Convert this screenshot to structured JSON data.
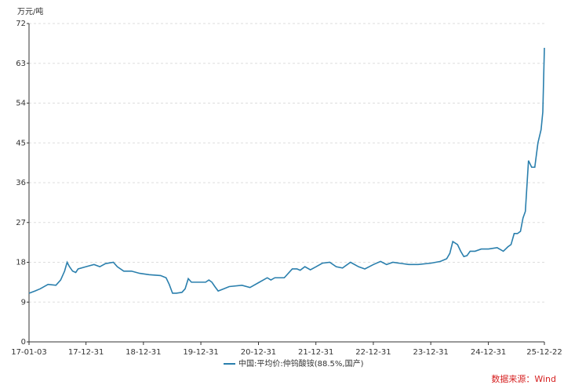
{
  "chart_data": {
    "type": "line",
    "y_label": "万元/吨",
    "source": "数据来源：Wind",
    "x": [
      "17-01-03",
      "17-02-10",
      "17-03-15",
      "17-05-04",
      "17-06-23",
      "17-07-23",
      "17-08-17",
      "17-09-02",
      "17-09-17",
      "17-10-07",
      "17-10-27",
      "17-11-11",
      "17-12-31",
      "18-02-20",
      "18-03-29",
      "18-05-04",
      "18-06-23",
      "18-07-18",
      "18-08-28",
      "18-10-16",
      "18-12-07",
      "19-02-05",
      "19-04-19",
      "19-05-24",
      "19-06-13",
      "19-07-04",
      "19-07-28",
      "19-09-02",
      "19-09-22",
      "19-10-12",
      "19-11-01",
      "19-12-01",
      "20-01-30",
      "20-02-20",
      "20-03-10",
      "20-03-29",
      "20-04-19",
      "20-05-24",
      "20-06-28",
      "20-09-17",
      "20-11-07",
      "21-01-06",
      "21-02-25",
      "21-03-20",
      "21-04-14",
      "21-06-13",
      "21-08-03",
      "21-09-02",
      "21-09-22",
      "21-10-22",
      "21-11-26",
      "22-01-01",
      "22-02-10",
      "22-03-29",
      "22-05-09",
      "22-06-18",
      "22-08-08",
      "22-09-28",
      "22-11-07",
      "23-01-01",
      "23-02-15",
      "23-03-25",
      "23-05-04",
      "23-08-13",
      "23-10-12",
      "24-01-01",
      "24-03-01",
      "24-04-10",
      "24-04-30",
      "24-05-19",
      "24-06-18",
      "24-07-08",
      "24-07-28",
      "24-08-17",
      "24-09-06",
      "24-10-07",
      "24-11-16",
      "25-01-01",
      "25-02-25",
      "25-04-05",
      "25-05-04",
      "25-05-24",
      "25-06-13",
      "25-07-04",
      "25-07-23",
      "25-08-08",
      "25-08-23",
      "25-09-12",
      "25-10-02",
      "25-10-22",
      "25-11-11",
      "25-12-01",
      "25-12-12",
      "25-12-22"
    ],
    "series": [
      {
        "name": "中国:平均价:仲钨酸铵(88.5%,国产)",
        "color": "#2a7fad",
        "values": [
          11,
          11.5,
          12,
          13,
          12.8,
          14,
          16,
          18,
          17,
          16,
          15.7,
          16.5,
          17,
          17.5,
          17,
          17.7,
          18,
          17,
          16,
          16,
          15.5,
          15.2,
          15,
          14.5,
          13,
          11,
          11,
          11.2,
          12,
          14.3,
          13.5,
          13.5,
          13.5,
          14,
          13.5,
          12.5,
          11.5,
          12,
          12.5,
          12.8,
          12.3,
          13.5,
          14.5,
          14,
          14.5,
          14.5,
          16.5,
          16.5,
          16.2,
          17,
          16.3,
          17,
          17.8,
          18,
          17,
          16.7,
          18,
          17,
          16.5,
          17.5,
          18.2,
          17.5,
          18,
          17.5,
          17.5,
          17.8,
          18.2,
          18.8,
          20,
          22.7,
          22,
          20.5,
          19.3,
          19.5,
          20.5,
          20.5,
          21,
          21,
          21.3,
          20.5,
          21.5,
          22,
          24.5,
          24.5,
          25,
          28,
          29.5,
          41,
          39.5,
          39.5,
          45,
          48,
          52,
          66.5
        ]
      }
    ],
    "xlim": [
      "17-01-03",
      "25-12-22"
    ],
    "xticks": [
      "17-01-03",
      "17-12-31",
      "18-12-31",
      "19-12-31",
      "20-12-31",
      "21-12-31",
      "22-12-31",
      "23-12-31",
      "24-12-31",
      "25-12-22"
    ],
    "ylim": [
      0,
      72
    ],
    "yticks": [
      0,
      9,
      18,
      27,
      36,
      45,
      54,
      63,
      72
    ],
    "grid": true
  }
}
